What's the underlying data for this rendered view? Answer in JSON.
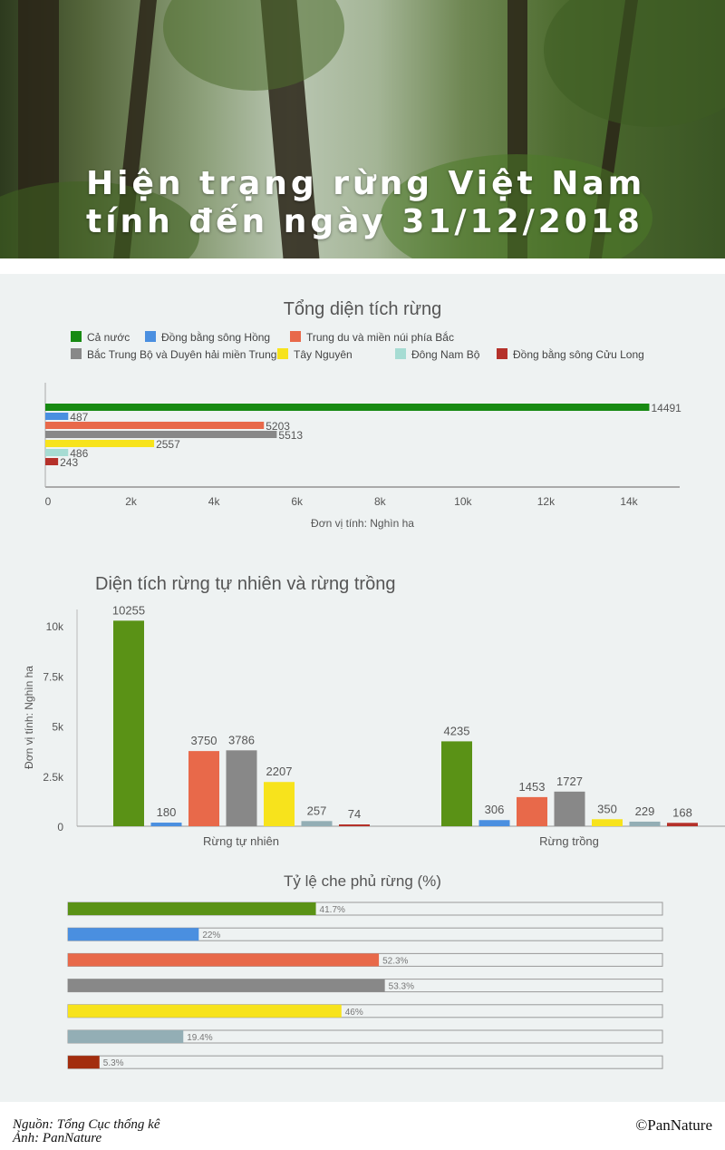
{
  "header": {
    "title_line1": "Hiện trạng rừng Việt Nam",
    "title_line2": "tính đến ngày 31/12/2018"
  },
  "colors": {
    "ca_nuoc": "#178a12",
    "dbsh": "#4a8fe0",
    "tdmn": "#e8694a",
    "btb": "#888888",
    "tn": "#f7e31c",
    "dnb": "#a6dcd3",
    "dbscl": "#b5312a",
    "green2": "#5a9216",
    "teal2": "#93aeb5",
    "red2": "#a32d0e"
  },
  "chart_data": [
    {
      "type": "bar",
      "orientation": "horizontal",
      "title": "Tổng diện tích rừng",
      "legend": [
        "Cả nước",
        "Đồng bằng sông Hồng",
        "Trung du và miền núi phía Bắc",
        "Bắc Trung Bộ và Duyên hải miền Trung",
        "Tây Nguyên",
        "Đông Nam Bộ",
        "Đồng bằng sông Cửu Long"
      ],
      "legend_position": "top-left",
      "values": [
        14491,
        487,
        5203,
        5513,
        2557,
        486,
        243
      ],
      "xlim": [
        0,
        15200
      ],
      "xticks": [
        0,
        2000,
        4000,
        6000,
        8000,
        10000,
        12000,
        14000
      ],
      "xtick_labels": [
        "0",
        "2k",
        "4k",
        "6k",
        "8k",
        "10k",
        "12k",
        "14k"
      ],
      "xlabel": "Đơn vị tính: Nghìn ha"
    },
    {
      "type": "bar",
      "title": "Diện tích rừng tự nhiên và rừng trồng",
      "categories": [
        "Rừng tự nhiên",
        "Rừng trồng"
      ],
      "series": [
        {
          "name": "Cả nước",
          "values": [
            10255,
            4235
          ]
        },
        {
          "name": "Đồng bằng sông Hồng",
          "values": [
            180,
            306
          ]
        },
        {
          "name": "Trung du và miền núi phía Bắc",
          "values": [
            3750,
            1453
          ]
        },
        {
          "name": "Bắc Trung Bộ và Duyên hải miền Trung",
          "values": [
            3786,
            1727
          ]
        },
        {
          "name": "Tây Nguyên",
          "values": [
            2207,
            350
          ]
        },
        {
          "name": "Đông Nam Bộ",
          "values": [
            257,
            229
          ]
        },
        {
          "name": "Đồng bằng sông Cửu Long",
          "values": [
            74,
            168
          ]
        }
      ],
      "ylim": [
        0,
        10800
      ],
      "yticks": [
        0,
        2500,
        5000,
        7500,
        10000
      ],
      "ytick_labels": [
        "0",
        "2.5k",
        "5k",
        "7.5k",
        "10k"
      ],
      "ylabel": "Đơn vị tính: Nghìn ha"
    },
    {
      "type": "bar",
      "orientation": "horizontal",
      "title": "Tỷ lệ che phủ rừng (%)",
      "values": [
        41.7,
        22,
        52.3,
        53.3,
        46,
        19.4,
        5.3
      ],
      "labels": [
        "41.7%",
        "22%",
        "52.3%",
        "53.3%",
        "46%",
        "19.4%",
        "5.3%"
      ],
      "xlim": [
        0,
        100
      ]
    }
  ],
  "footer": {
    "source": "Nguồn: Tổng Cục thống kê",
    "photo": "Ảnh: PanNature",
    "brand": "©PanNature"
  }
}
